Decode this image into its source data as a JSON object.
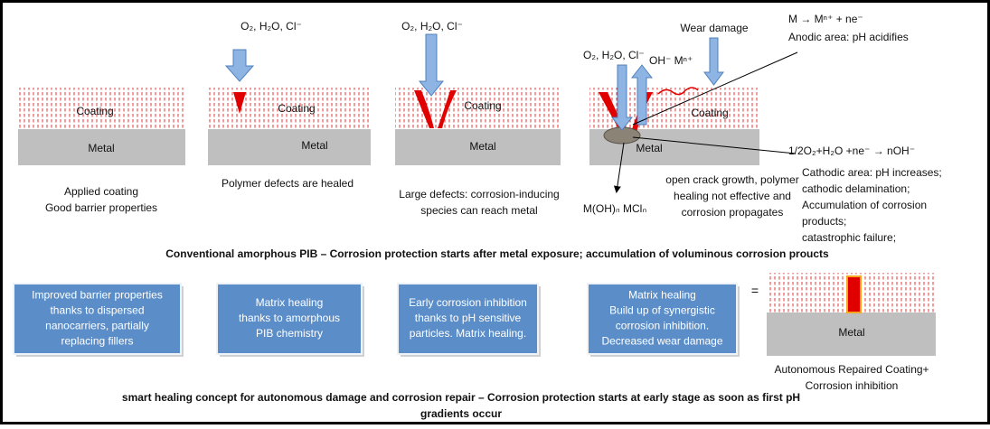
{
  "conventional": {
    "panels": [
      {
        "coating": "Coating",
        "metal": "Metal",
        "caption": [
          "Applied  coating",
          "Good barrier properties"
        ]
      },
      {
        "species": "O₂, H₂O, Cl⁻",
        "coating": "Coating",
        "metal": "Metal",
        "caption": [
          "Polymer defects are healed"
        ]
      },
      {
        "species": "O₂, H₂O, Cl⁻",
        "coating": "Coating",
        "metal": "Metal",
        "caption": [
          "Large defects: corrosion-inducing",
          "species can reach metal"
        ]
      },
      {
        "species": "O₂, H₂O, Cl⁻",
        "ions": "OH⁻  Mⁿ⁺",
        "wear": "Wear damage",
        "coating": "Coating",
        "metal": "Metal",
        "products": "M(OH)ₙ  MClₙ",
        "caption": [
          "open crack growth, polymer",
          "healing not effective  and",
          "corrosion propagates"
        ]
      }
    ],
    "anodic": [
      "M → Mⁿ⁺ + ne⁻",
      "Anodic area: pH acidifies"
    ],
    "cathodic_reaction": "1/2O₂+H₂O +ne⁻ → nOH⁻",
    "cathodic": [
      "Cathodic area: pH increases;",
      "cathodic delamination;",
      "Accumulation of corrosion",
      "products;",
      "catastrophic failure;"
    ],
    "title": "Conventional amorphous PIB – Corrosion protection starts after metal exposure; accumulation of voluminous corrosion proucts"
  },
  "smart": {
    "boxes": [
      [
        "Improved barrier properties",
        "thanks to dispersed",
        "nanocarriers, partially",
        "replacing fillers"
      ],
      [
        "Matrix healing",
        "thanks to amorphous",
        "PIB chemistry"
      ],
      [
        "Early corrosion inhibition",
        "thanks to pH sensitive",
        "particles. Matrix healing."
      ],
      [
        "Matrix healing",
        "Build up of synergistic",
        "corrosion  inhibition.",
        "Decreased wear damage"
      ]
    ],
    "equals": "=",
    "result": {
      "metal": "Metal",
      "caption": [
        "Autonomous Repaired Coating+",
        "Corrosion inhibition"
      ]
    },
    "title": [
      "smart healing concept for autonomous damage and corrosion repair – Corrosion protection starts at early stage as soon as first pH",
      "gradients occur"
    ]
  }
}
